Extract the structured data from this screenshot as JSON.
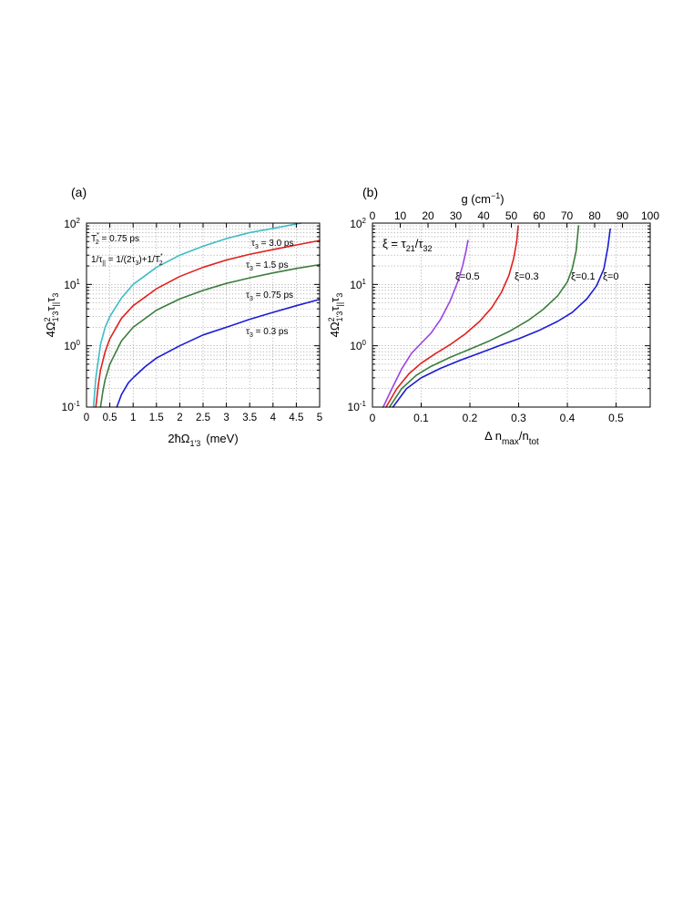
{
  "chart_data": [
    {
      "type": "line",
      "panel_label": "(a)",
      "xlabel": "2ħΩ",
      "xlabel_sub": "1'3",
      "xlabel_unit": "(meV)",
      "ylabel_parts": [
        "4Ω",
        "2",
        "1'3",
        "τ",
        "||",
        "τ",
        "3"
      ],
      "xlim": [
        0,
        5
      ],
      "ylim": [
        0.1,
        100
      ],
      "yscale": "log",
      "x_ticks": [
        "0",
        "0.5",
        "1",
        "1.5",
        "2",
        "2.5",
        "3",
        "3.5",
        "4",
        "4.5",
        "5"
      ],
      "y_ticks": [
        {
          "base": "10",
          "exp": "-1"
        },
        {
          "base": "10",
          "exp": "0"
        },
        {
          "base": "10",
          "exp": "1"
        },
        {
          "base": "10",
          "exp": "2"
        }
      ],
      "grid": true,
      "annotations": {
        "t2_text": "T",
        "t2_sup": "*",
        "t2_sub": "2",
        "t2_value": " = 0.75 ps",
        "rel_text1": "1/τ",
        "rel_sub1": "||",
        "rel_text2": " = 1/(2τ",
        "rel_sub2": "3",
        "rel_text3": ")+1/T",
        "rel_sup3": "*",
        "rel_sub3": "2"
      },
      "series": [
        {
          "label_tau": "τ",
          "label_sub": "3",
          "label_value": " = 3.0 ps",
          "color": "#3dbcc6",
          "tau3_ps": 3.0,
          "x": [
            0.15,
            0.2,
            0.3,
            0.4,
            0.5,
            0.75,
            1.0,
            1.5,
            2.0,
            2.5,
            3.0,
            3.5,
            4.0,
            4.6
          ],
          "y": [
            0.1,
            0.3,
            1.05,
            2.0,
            3.0,
            6.0,
            10,
            19,
            30,
            42,
            56,
            70,
            82,
            100
          ]
        },
        {
          "label_tau": "τ",
          "label_sub": "3",
          "label_value": " = 1.5 ps",
          "color": "#e0201d",
          "tau3_ps": 1.5,
          "x": [
            0.2,
            0.25,
            0.3,
            0.4,
            0.5,
            0.75,
            1.0,
            1.5,
            2.0,
            2.5,
            3.0,
            3.5,
            4.0,
            4.5,
            5.0
          ],
          "y": [
            0.1,
            0.22,
            0.4,
            0.8,
            1.3,
            2.8,
            4.5,
            8.5,
            13.5,
            19,
            25,
            31,
            37,
            44,
            52
          ]
        },
        {
          "label_tau": "τ",
          "label_sub": "3",
          "label_value": " = 0.75 ps",
          "color": "#3b7d3b",
          "tau3_ps": 0.75,
          "x": [
            0.3,
            0.35,
            0.4,
            0.5,
            0.75,
            1.0,
            1.5,
            2.0,
            2.5,
            3.0,
            3.5,
            4.0,
            4.5,
            5.0
          ],
          "y": [
            0.1,
            0.18,
            0.28,
            0.5,
            1.2,
            2.0,
            3.8,
            5.8,
            8.0,
            10.4,
            12.8,
            15.4,
            18.2,
            21
          ]
        },
        {
          "label_tau": "τ",
          "label_sub": "3",
          "label_value": " = 0.3 ps",
          "color": "#1b1bd6",
          "tau3_ps": 0.3,
          "x": [
            0.65,
            0.75,
            0.9,
            1.0,
            1.25,
            1.5,
            2.0,
            2.5,
            3.0,
            3.5,
            4.0,
            4.5,
            5.0
          ],
          "y": [
            0.1,
            0.16,
            0.25,
            0.3,
            0.45,
            0.63,
            1.0,
            1.5,
            2.0,
            2.7,
            3.5,
            4.5,
            5.7
          ]
        }
      ]
    },
    {
      "type": "line",
      "panel_label": "(b)",
      "xlabel": "Δ n",
      "xlabel_sub1": "max",
      "xlabel_mid": "/n",
      "xlabel_sub2": "tot",
      "top_xlabel": "g (cm",
      "top_xlabel_sup": "−1",
      "top_xlabel_end": ")",
      "ylabel_parts": [
        "4Ω",
        "2",
        "1'3",
        "τ",
        "||",
        "τ",
        "3"
      ],
      "xlim": [
        0,
        0.57
      ],
      "top_xlim": [
        0,
        100
      ],
      "ylim": [
        0.1,
        100
      ],
      "yscale": "log",
      "x_ticks": [
        "0",
        "0.1",
        "0.2",
        "0.3",
        "0.4",
        "0.5"
      ],
      "top_x_ticks": [
        "0",
        "10",
        "20",
        "30",
        "40",
        "50",
        "60",
        "70",
        "80",
        "90",
        "100"
      ],
      "y_ticks": [
        {
          "base": "10",
          "exp": "-1"
        },
        {
          "base": "10",
          "exp": "0"
        },
        {
          "base": "10",
          "exp": "1"
        },
        {
          "base": "10",
          "exp": "2"
        }
      ],
      "grid": true,
      "annotations": {
        "xi_text1": "ξ = τ",
        "xi_sub1": "21",
        "xi_text2": "/τ",
        "xi_sub2": "32"
      },
      "series": [
        {
          "name": "ξ=0.5",
          "color": "#9a44e0",
          "x": [
            0.022,
            0.04,
            0.06,
            0.08,
            0.1,
            0.12,
            0.14,
            0.16,
            0.175,
            0.185,
            0.192,
            0.196
          ],
          "y": [
            0.1,
            0.2,
            0.42,
            0.75,
            1.1,
            1.6,
            2.7,
            5.5,
            11,
            20,
            35,
            52
          ]
        },
        {
          "name": "ξ=0.3",
          "color": "#e0201d",
          "x": [
            0.028,
            0.05,
            0.075,
            0.1,
            0.13,
            0.16,
            0.19,
            0.22,
            0.245,
            0.265,
            0.28,
            0.29,
            0.296,
            0.299
          ],
          "y": [
            0.1,
            0.2,
            0.35,
            0.52,
            0.75,
            1.05,
            1.55,
            2.5,
            4.2,
            7.5,
            14,
            27,
            50,
            90
          ]
        },
        {
          "name": "ξ=0.1",
          "color": "#3b7d3b",
          "x": [
            0.035,
            0.06,
            0.09,
            0.12,
            0.16,
            0.2,
            0.24,
            0.28,
            0.32,
            0.35,
            0.38,
            0.4,
            0.41,
            0.418,
            0.423
          ],
          "y": [
            0.1,
            0.2,
            0.33,
            0.46,
            0.65,
            0.88,
            1.2,
            1.7,
            2.6,
            3.9,
            6.5,
            11,
            18,
            35,
            90
          ]
        },
        {
          "name": "ξ=0",
          "color": "#1b1bd6",
          "x": [
            0.042,
            0.07,
            0.1,
            0.14,
            0.18,
            0.22,
            0.26,
            0.3,
            0.34,
            0.38,
            0.41,
            0.44,
            0.46,
            0.475,
            0.483,
            0.488
          ],
          "y": [
            0.1,
            0.2,
            0.3,
            0.43,
            0.58,
            0.76,
            1.0,
            1.3,
            1.75,
            2.5,
            3.5,
            5.8,
            9.5,
            18,
            40,
            80
          ]
        }
      ]
    }
  ]
}
